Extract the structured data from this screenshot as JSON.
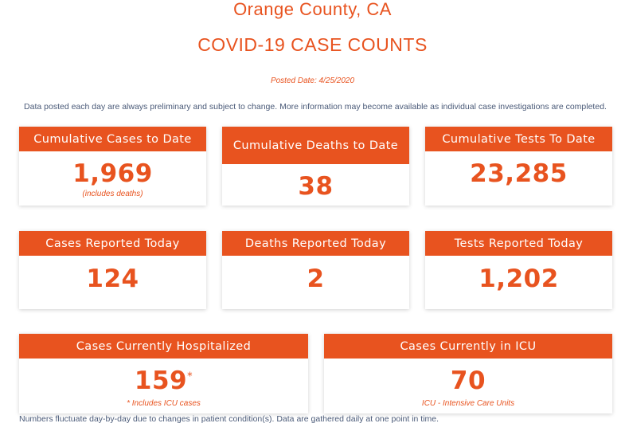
{
  "header": {
    "location": "Orange County, CA",
    "title": "COVID-19 CASE COUNTS",
    "posted_date": "Posted Date: 4/25/2020",
    "disclaimer": "Data posted each day are always preliminary and subject to change. More information may become available as individual case investigations are completed."
  },
  "cards": {
    "cumulative_cases": {
      "label": "Cumulative Cases to Date",
      "value": "1,969",
      "note": "(includes deaths)"
    },
    "cumulative_deaths": {
      "label": "Cumulative Deaths to Date",
      "value": "38"
    },
    "cumulative_tests": {
      "label": "Cumulative Tests To Date",
      "value": "23,285"
    },
    "cases_today": {
      "label": "Cases Reported Today",
      "value": "124"
    },
    "deaths_today": {
      "label": "Deaths Reported Today",
      "value": "2"
    },
    "tests_today": {
      "label": "Tests Reported Today",
      "value": "1,202"
    },
    "hospitalized": {
      "label": "Cases Currently Hospitalized",
      "value": "159",
      "marker": "*",
      "note_marker": "*",
      "note": " Includes ICU cases"
    },
    "icu": {
      "label": "Cases Currently in ICU",
      "value": "70",
      "note": "ICU - Intensive Care Units"
    }
  },
  "footer": {
    "note": "Numbers fluctuate day-by-day due to changes in patient condition(s). Data are gathered daily at one point in time."
  },
  "colors": {
    "accent": "#e8531f",
    "text_muted": "#4a5a78"
  }
}
